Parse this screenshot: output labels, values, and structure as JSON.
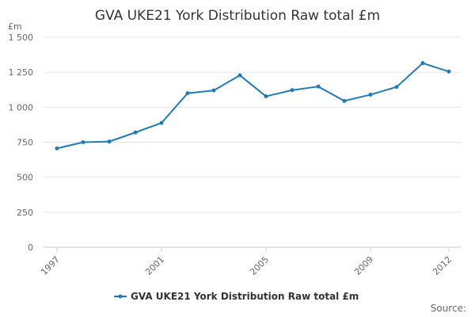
{
  "chart_data": {
    "type": "line",
    "title": "GVA UKE21 York Distribution Raw total £m",
    "unit_label": "£m",
    "x": [
      1997,
      1998,
      1999,
      2000,
      2001,
      2002,
      2003,
      2004,
      2005,
      2006,
      2007,
      2008,
      2009,
      2010,
      2011,
      2012
    ],
    "x_tick_labels": [
      "1997",
      "2001",
      "2005",
      "2009",
      "2012"
    ],
    "x_tick_values": [
      1997,
      2001,
      2005,
      2009,
      2012
    ],
    "y_tick_values": [
      0,
      250,
      500,
      750,
      1000,
      1250,
      1500
    ],
    "y_tick_labels": [
      "0",
      "250",
      "500",
      "750",
      "1 000",
      "1 250",
      "1 500"
    ],
    "ylim": [
      0,
      1500
    ],
    "xlim": [
      1997,
      2012
    ],
    "grid": true,
    "legend_position": "bottom-center",
    "series": [
      {
        "name": "GVA UKE21 York Distribution Raw total £m",
        "color": "#1f7ab8",
        "values": [
          706,
          750,
          755,
          820,
          888,
          1100,
          1120,
          1228,
          1078,
          1122,
          1148,
          1045,
          1090,
          1145,
          1315,
          1255
        ]
      }
    ],
    "source_label": "Source:"
  }
}
